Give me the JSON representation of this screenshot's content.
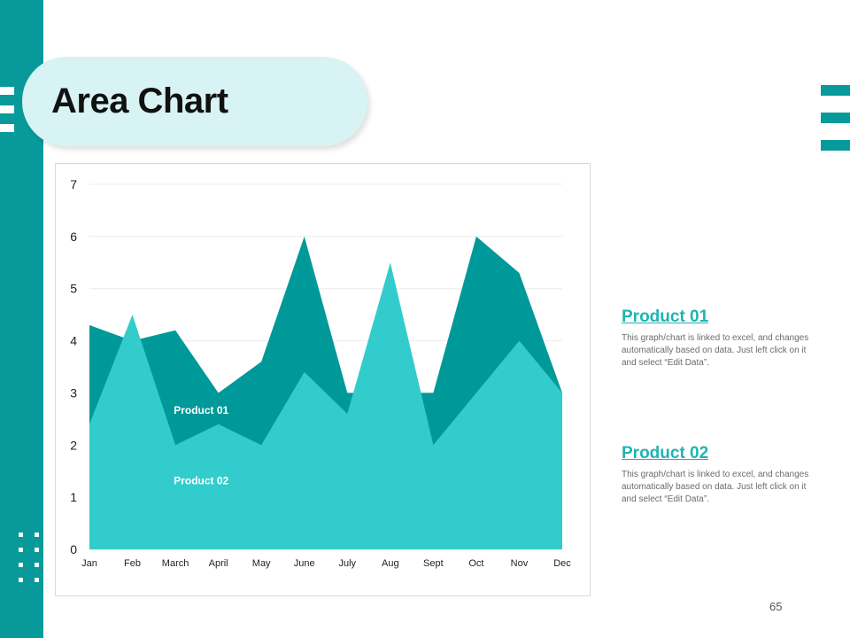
{
  "slide": {
    "title": "Area Chart",
    "page_number": "65"
  },
  "legend": [
    {
      "title": "Product 01",
      "description": "This graph/chart is linked to excel, and changes automatically based on data. Just left click on it and select “Edit Data”."
    },
    {
      "title": "Product 02",
      "description": "This graph/chart is linked to excel, and changes automatically based on data. Just left click on it and select “Edit Data”."
    }
  ],
  "colors": {
    "accent": "#089a9a",
    "product_01": "#009999",
    "product_02": "#33cccc",
    "title_pill": "#d8f3f4",
    "legend_title": "#1fb4b4"
  },
  "chart_data": {
    "type": "area",
    "categories": [
      "Jan",
      "Feb",
      "March",
      "April",
      "May",
      "June",
      "July",
      "Aug",
      "Sept",
      "Oct",
      "Nov",
      "Dec"
    ],
    "series": [
      {
        "name": "Product 01",
        "values": [
          4.3,
          4.0,
          4.2,
          3.0,
          3.6,
          6.0,
          3.0,
          3.0,
          3.0,
          6.0,
          5.3,
          3.0
        ]
      },
      {
        "name": "Product 02",
        "values": [
          2.4,
          4.5,
          2.0,
          2.4,
          2.0,
          3.4,
          2.6,
          5.5,
          2.0,
          3.0,
          4.0,
          3.0
        ]
      }
    ],
    "yticks": [
      "0",
      "1",
      "2",
      "3",
      "4",
      "5",
      "6",
      "7"
    ],
    "ylim": [
      0,
      7
    ],
    "grid": true,
    "series_labels_inside": true,
    "title": "",
    "xlabel": "",
    "ylabel": ""
  }
}
